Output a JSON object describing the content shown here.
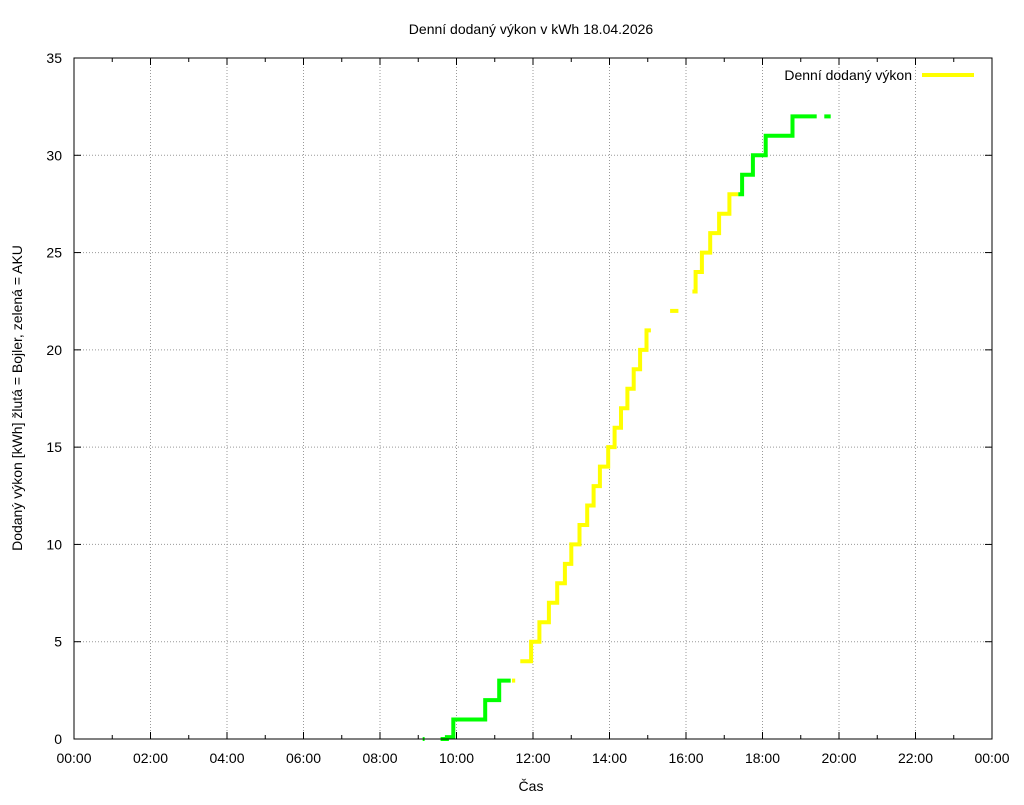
{
  "chart_data": {
    "type": "line",
    "title": "Denní dodaný výkon v kWh 18.04.2026",
    "xlabel": "Čas",
    "ylabel": "Dodaný výkon [kWh]  žlutá = Bojler, zelená = AKU",
    "xlim": [
      "00:00",
      "24:00"
    ],
    "ylim": [
      0,
      35
    ],
    "x_ticks": [
      "00:00",
      "02:00",
      "04:00",
      "06:00",
      "08:00",
      "10:00",
      "12:00",
      "14:00",
      "16:00",
      "18:00",
      "20:00",
      "22:00",
      "00:00"
    ],
    "y_ticks": [
      "0",
      "5",
      "10",
      "15",
      "20",
      "25",
      "30",
      "35"
    ],
    "grid": true,
    "legend": {
      "position": "top-right",
      "label": "Denní dodaný výkon"
    },
    "colors": {
      "bojler": "#ffff00",
      "aku": "#00ff00",
      "legend_line": "#ffff00",
      "grid": "#999999"
    },
    "segments": [
      {
        "series": "AKU",
        "points": [
          [
            "09:07",
            0
          ],
          [
            "09:10",
            0
          ]
        ]
      },
      {
        "series": "AKU",
        "points": [
          [
            "09:35",
            0
          ],
          [
            "09:45",
            0
          ],
          [
            "09:45",
            0.1
          ],
          [
            "09:55",
            0.1
          ],
          [
            "09:55",
            1
          ],
          [
            "10:45",
            1
          ],
          [
            "10:45",
            2
          ],
          [
            "11:07",
            2
          ],
          [
            "11:07",
            3
          ],
          [
            "11:25",
            3
          ]
        ]
      },
      {
        "series": "Bojler",
        "points": [
          [
            "11:27",
            3
          ],
          [
            "11:32",
            3
          ]
        ]
      },
      {
        "series": "Bojler",
        "points": [
          [
            "11:40",
            4
          ],
          [
            "11:57",
            4
          ],
          [
            "11:57",
            5
          ],
          [
            "12:10",
            5
          ],
          [
            "12:10",
            6
          ],
          [
            "12:25",
            6
          ],
          [
            "12:25",
            7
          ],
          [
            "12:38",
            7
          ],
          [
            "12:38",
            8
          ],
          [
            "12:50",
            8
          ],
          [
            "12:50",
            9
          ],
          [
            "13:00",
            9
          ],
          [
            "13:00",
            10
          ],
          [
            "13:13",
            10
          ],
          [
            "13:13",
            11
          ],
          [
            "13:25",
            11
          ],
          [
            "13:25",
            12
          ],
          [
            "13:35",
            12
          ],
          [
            "13:35",
            13
          ],
          [
            "13:45",
            13
          ],
          [
            "13:45",
            14
          ],
          [
            "13:58",
            14
          ],
          [
            "13:58",
            15
          ],
          [
            "14:08",
            15
          ],
          [
            "14:08",
            16
          ],
          [
            "14:18",
            16
          ],
          [
            "14:18",
            17
          ],
          [
            "14:28",
            17
          ],
          [
            "14:28",
            18
          ],
          [
            "14:38",
            18
          ],
          [
            "14:38",
            19
          ],
          [
            "14:48",
            19
          ],
          [
            "14:48",
            20
          ],
          [
            "14:58",
            20
          ],
          [
            "14:58",
            21
          ],
          [
            "15:05",
            21
          ]
        ]
      },
      {
        "series": "Bojler",
        "points": [
          [
            "15:35",
            22
          ],
          [
            "15:48",
            22
          ]
        ]
      },
      {
        "series": "Bojler",
        "points": [
          [
            "16:10",
            23
          ],
          [
            "16:15",
            23
          ],
          [
            "16:15",
            24
          ],
          [
            "16:25",
            24
          ],
          [
            "16:25",
            25
          ],
          [
            "16:38",
            25
          ],
          [
            "16:38",
            26
          ],
          [
            "16:52",
            26
          ],
          [
            "16:52",
            27
          ],
          [
            "17:08",
            27
          ],
          [
            "17:08",
            28
          ],
          [
            "17:22",
            28
          ]
        ]
      },
      {
        "series": "AKU",
        "points": [
          [
            "17:22",
            28
          ],
          [
            "17:28",
            28
          ],
          [
            "17:28",
            29
          ],
          [
            "17:45",
            29
          ],
          [
            "17:45",
            30
          ],
          [
            "18:05",
            30
          ],
          [
            "18:05",
            31
          ],
          [
            "18:47",
            31
          ],
          [
            "18:47",
            32
          ],
          [
            "19:25",
            32
          ]
        ]
      },
      {
        "series": "AKU",
        "points": [
          [
            "19:37",
            32
          ],
          [
            "19:47",
            32
          ]
        ]
      }
    ]
  }
}
